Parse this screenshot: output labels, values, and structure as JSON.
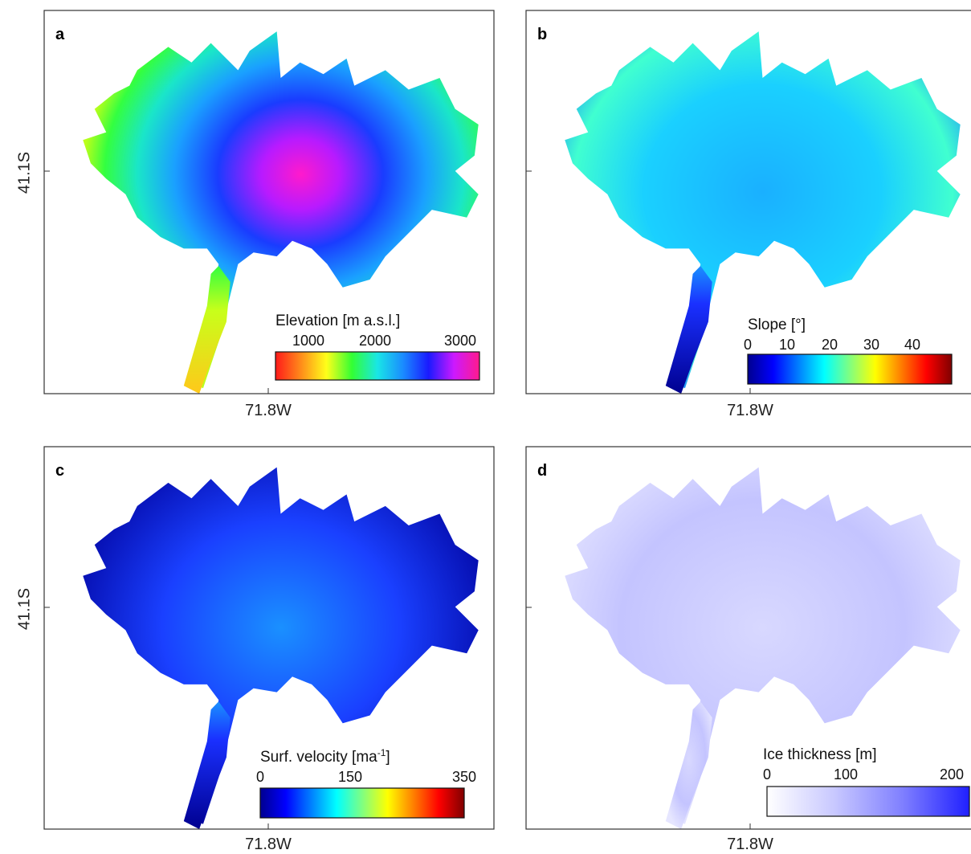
{
  "figure": {
    "lat_label": "41.1S",
    "lon_label": "71.8W"
  },
  "panels": [
    {
      "label": "a",
      "colorbar": {
        "title": "Elevation [m a.s.l.]",
        "ticks": [
          "1000",
          "2000",
          "3000"
        ],
        "colors": [
          "#ff1a1a",
          "#ff8c1a",
          "#ffff1a",
          "#33ff33",
          "#19e6e6",
          "#1a8cff",
          "#1a1aff",
          "#cc19ff",
          "#ff1a8c"
        ]
      }
    },
    {
      "label": "b",
      "colorbar": {
        "title": "Slope  [°]",
        "ticks": [
          "0",
          "10",
          "20",
          "30",
          "40"
        ],
        "colors": [
          "#00008f",
          "#0000ff",
          "#0080ff",
          "#00ffff",
          "#80ff80",
          "#ffff00",
          "#ff8000",
          "#ff0000",
          "#800000"
        ]
      }
    },
    {
      "label": "c",
      "colorbar": {
        "title": "Surf. velocity [ma",
        "title_sup": "-1",
        "title_end": "]",
        "ticks": [
          "0",
          "150",
          "350"
        ],
        "colors": [
          "#00008f",
          "#0000ff",
          "#0080ff",
          "#00ffff",
          "#80ff80",
          "#ffff00",
          "#ff8000",
          "#ff0000",
          "#800000"
        ]
      }
    },
    {
      "label": "d",
      "colorbar": {
        "title": "Ice thickness [m]",
        "ticks": [
          "0",
          "100",
          "200"
        ],
        "colors": [
          "#ffffff",
          "#c8c8ff",
          "#8080ff",
          "#2020ff"
        ]
      }
    }
  ]
}
